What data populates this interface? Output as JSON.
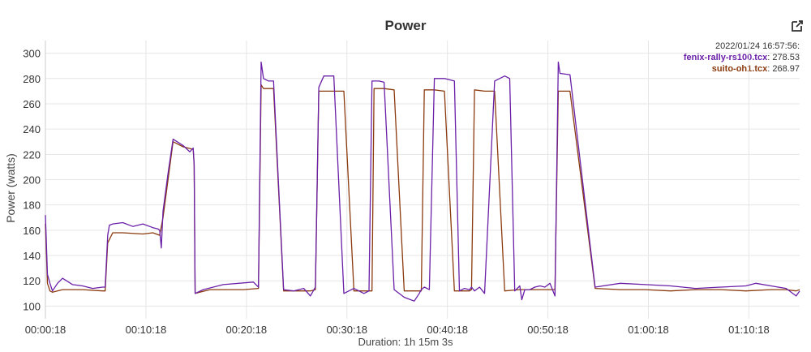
{
  "chart_data": {
    "type": "line",
    "title": "Power",
    "xlabel": "Duration: 1h 15m 3s",
    "ylabel": "Power (watts)",
    "x_unit": "seconds",
    "xlim": [
      18,
      4521
    ],
    "ylim": [
      90,
      310
    ],
    "yticks": [
      100,
      120,
      140,
      160,
      180,
      200,
      220,
      240,
      260,
      280,
      300
    ],
    "xticks": [
      {
        "value": 18,
        "label": "00:00:18"
      },
      {
        "value": 618,
        "label": "00:10:18"
      },
      {
        "value": 1218,
        "label": "00:20:18"
      },
      {
        "value": 1818,
        "label": "00:30:18"
      },
      {
        "value": 2418,
        "label": "00:40:18"
      },
      {
        "value": 3018,
        "label": "00:50:18"
      },
      {
        "value": 3618,
        "label": "01:00:18"
      },
      {
        "value": 4218,
        "label": "01:10:18"
      }
    ],
    "grid": true,
    "legend_position": "top-right",
    "legend_header": "2022/01/24 16:57:56:",
    "series": [
      {
        "name": "fenix-rally-rs100.tcx",
        "legend_value": "278.53",
        "color": "#6a1fa8",
        "x": [
          18,
          30,
          45,
          60,
          90,
          120,
          180,
          240,
          300,
          360,
          375,
          390,
          400,
          420,
          480,
          540,
          600,
          660,
          690,
          700,
          710,
          720,
          750,
          780,
          840,
          880,
          900,
          906,
          912,
          960,
          1080,
          1260,
          1290,
          1306,
          1320,
          1350,
          1380,
          1440,
          1500,
          1560,
          1600,
          1630,
          1650,
          1680,
          1710,
          1740,
          1800,
          1830,
          1860,
          1920,
          1950,
          1968,
          1980,
          2010,
          2040,
          2100,
          2160,
          2220,
          2250,
          2262,
          2280,
          2310,
          2340,
          2400,
          2460,
          2490,
          2520,
          2550,
          2562,
          2580,
          2610,
          2640,
          2700,
          2760,
          2790,
          2820,
          2850,
          2862,
          2880,
          2910,
          2940,
          2970,
          3000,
          3030,
          3060,
          3080,
          3090,
          3150,
          3300,
          3450,
          3600,
          3750,
          3900,
          4050,
          4200,
          4260,
          4350,
          4440,
          4500,
          4521
        ],
        "y": [
          172,
          125,
          118,
          112,
          118,
          122,
          117,
          116,
          114,
          115,
          115,
          156,
          164,
          165,
          166,
          163,
          165,
          162,
          161,
          160,
          146,
          175,
          205,
          232,
          227,
          222,
          225,
          212,
          110,
          113,
          117,
          119,
          115,
          293,
          280,
          278,
          278,
          113,
          112,
          114,
          108,
          115,
          273,
          282,
          282,
          282,
          110,
          112,
          114,
          110,
          112,
          278,
          278,
          278,
          277,
          113,
          107,
          104,
          110,
          113,
          115,
          113,
          280,
          280,
          278,
          112,
          114,
          113,
          115,
          112,
          115,
          110,
          278,
          282,
          280,
          112,
          116,
          105,
          113,
          113,
          115,
          116,
          115,
          118,
          108,
          293,
          284,
          283,
          115,
          118,
          117,
          116,
          114,
          115,
          116,
          118,
          116,
          114,
          108,
          112
        ]
      },
      {
        "name": "suito-oh1.tcx",
        "legend_value": "268.97",
        "color": "#8b3a0e",
        "x": [
          18,
          30,
          45,
          60,
          120,
          240,
          360,
          375,
          390,
          420,
          480,
          600,
          660,
          700,
          720,
          750,
          780,
          840,
          900,
          906,
          912,
          1000,
          1200,
          1290,
          1306,
          1320,
          1380,
          1440,
          1500,
          1600,
          1630,
          1650,
          1740,
          1800,
          1860,
          1920,
          1968,
          1980,
          2040,
          2100,
          2160,
          2250,
          2262,
          2280,
          2340,
          2400,
          2460,
          2550,
          2562,
          2580,
          2640,
          2700,
          2760,
          2850,
          2862,
          2880,
          2940,
          3000,
          3060,
          3080,
          3090,
          3150,
          3300,
          3450,
          3600,
          3750,
          3900,
          4050,
          4200,
          4350,
          4440,
          4500,
          4521
        ],
        "y": [
          165,
          118,
          112,
          111,
          113,
          113,
          112,
          112,
          150,
          158,
          158,
          157,
          158,
          156,
          170,
          200,
          230,
          226,
          224,
          212,
          110,
          113,
          113,
          114,
          275,
          272,
          272,
          112,
          112,
          112,
          113,
          270,
          270,
          270,
          112,
          112,
          112,
          272,
          272,
          271,
          112,
          112,
          112,
          271,
          271,
          270,
          112,
          112,
          113,
          271,
          270,
          270,
          112,
          113,
          113,
          113,
          113,
          113,
          113,
          270,
          270,
          270,
          114,
          113,
          113,
          112,
          113,
          113,
          112,
          113,
          113,
          112,
          113
        ]
      }
    ]
  }
}
